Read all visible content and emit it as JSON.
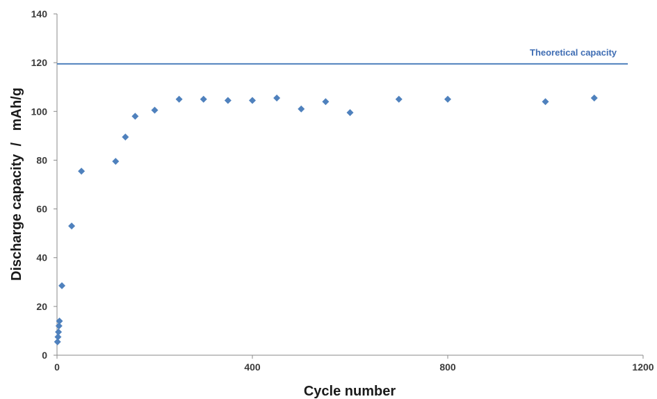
{
  "chart_data": {
    "type": "scatter",
    "title": "",
    "xlabel": "Cycle number",
    "ylabel": "Discharge capacity  /   mAh/g",
    "xlim": [
      0,
      1200
    ],
    "ylim": [
      0,
      140
    ],
    "x_ticks": [
      "0",
      "400",
      "800",
      "1200"
    ],
    "y_ticks": [
      "0",
      "20",
      "40",
      "60",
      "80",
      "100",
      "120",
      "140"
    ],
    "grid": false,
    "legend": "none",
    "marker_color": "#4f81bd",
    "series": [
      {
        "x": [
          1,
          2,
          3,
          4,
          5,
          10,
          30,
          50,
          120,
          140,
          160,
          200,
          250,
          300,
          350,
          400,
          450,
          500,
          550,
          600,
          700,
          800,
          1000,
          1100
        ],
        "y": [
          5.5,
          7.5,
          9.5,
          12,
          14,
          28.5,
          53,
          75.5,
          79.5,
          89.5,
          98,
          100.5,
          105,
          105,
          104.5,
          104.5,
          105.5,
          101,
          104,
          99.5,
          105,
          105,
          104,
          105.5
        ]
      }
    ],
    "reference_line": {
      "label": "Theoretical capacity",
      "y": 119.5,
      "color": "#4f81bd"
    }
  }
}
